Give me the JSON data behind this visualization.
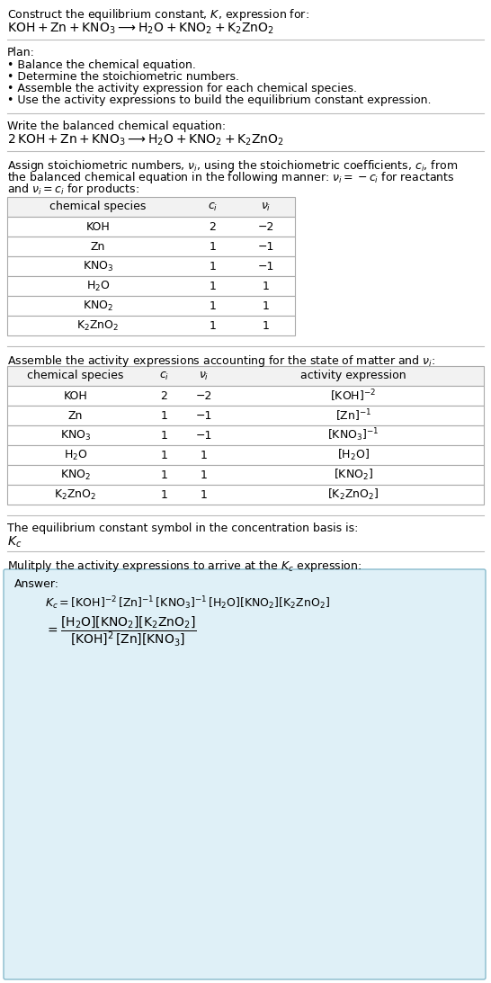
{
  "title_line1": "Construct the equilibrium constant, $K$, expression for:",
  "title_line2": "$\\mathrm{KOH + Zn + KNO_3 \\longrightarrow H_2O + KNO_2 + K_2ZnO_2}$",
  "plan_header": "Plan:",
  "plan_items": [
    "• Balance the chemical equation.",
    "• Determine the stoichiometric numbers.",
    "• Assemble the activity expression for each chemical species.",
    "• Use the activity expressions to build the equilibrium constant expression."
  ],
  "balanced_eq_header": "Write the balanced chemical equation:",
  "balanced_eq": "$\\mathrm{2\\, KOH + Zn + KNO_3 \\longrightarrow H_2O + KNO_2 + K_2ZnO_2}$",
  "stoich_lines": [
    "Assign stoichiometric numbers, $\\nu_i$, using the stoichiometric coefficients, $c_i$, from",
    "the balanced chemical equation in the following manner: $\\nu_i = -c_i$ for reactants",
    "and $\\nu_i = c_i$ for products:"
  ],
  "table1_cols": [
    "chemical species",
    "$c_i$",
    "$\\nu_i$"
  ],
  "table1_data": [
    [
      "KOH",
      "2",
      "−2"
    ],
    [
      "Zn",
      "1",
      "−1"
    ],
    [
      "$\\mathrm{KNO_3}$",
      "1",
      "−1"
    ],
    [
      "$\\mathrm{H_2O}$",
      "1",
      "1"
    ],
    [
      "$\\mathrm{KNO_2}$",
      "1",
      "1"
    ],
    [
      "$\\mathrm{K_2ZnO_2}$",
      "1",
      "1"
    ]
  ],
  "activity_header": "Assemble the activity expressions accounting for the state of matter and $\\nu_i$:",
  "table2_cols": [
    "chemical species",
    "$c_i$",
    "$\\nu_i$",
    "activity expression"
  ],
  "table2_data": [
    [
      "KOH",
      "2",
      "−2",
      "$[\\mathrm{KOH}]^{-2}$"
    ],
    [
      "Zn",
      "1",
      "−1",
      "$[\\mathrm{Zn}]^{-1}$"
    ],
    [
      "$\\mathrm{KNO_3}$",
      "1",
      "−1",
      "$[\\mathrm{KNO_3}]^{-1}$"
    ],
    [
      "$\\mathrm{H_2O}$",
      "1",
      "1",
      "$[\\mathrm{H_2O}]$"
    ],
    [
      "$\\mathrm{KNO_2}$",
      "1",
      "1",
      "$[\\mathrm{KNO_2}]$"
    ],
    [
      "$\\mathrm{K_2ZnO_2}$",
      "1",
      "1",
      "$[\\mathrm{K_2ZnO_2}]$"
    ]
  ],
  "kc_header": "The equilibrium constant symbol in the concentration basis is:",
  "kc_symbol": "$K_c$",
  "multiply_header": "Mulitply the activity expressions to arrive at the $K_c$ expression:",
  "answer_label": "Answer:",
  "answer_line1": "$K_c = [\\mathrm{KOH}]^{-2}\\,[\\mathrm{Zn}]^{-1}\\,[\\mathrm{KNO_3}]^{-1}\\,[\\mathrm{H_2O}][\\mathrm{KNO_2}][\\mathrm{K_2ZnO_2}]$",
  "answer_eq": "$= \\dfrac{[\\mathrm{H_2O}][\\mathrm{KNO_2}][\\mathrm{K_2ZnO_2}]}{[\\mathrm{KOH}]^2\\,[\\mathrm{Zn}][\\mathrm{KNO_3}]}$",
  "bg_color": "#ffffff",
  "answer_bg_color": "#dff0f7",
  "table_border_color": "#aaaaaa",
  "sep_line_color": "#bbbbbb",
  "text_color": "#000000"
}
